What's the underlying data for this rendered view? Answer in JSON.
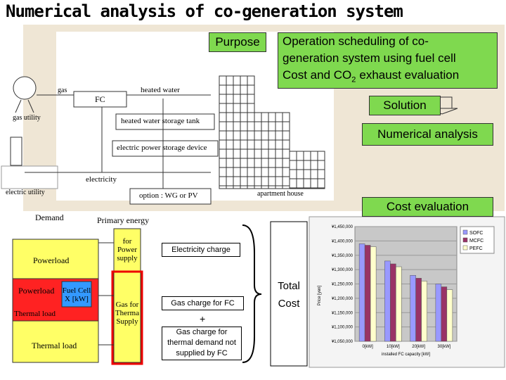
{
  "title": "Numerical analysis of co-generation system",
  "purpose": {
    "label": "Purpose",
    "lines": [
      "Operation scheduling of co-",
      "generation system using fuel cell"
    ],
    "co2_line": {
      "before": "Cost and CO",
      "sub": "2",
      "after": "exhaust evaluation"
    }
  },
  "solution": "Solution",
  "numerical_analysis": "Numerical analysis",
  "cost_evaluation": "Cost evaluation",
  "system_diagram": {
    "gas": "gas",
    "heated_water": "heated water",
    "fc": "FC",
    "gas_utility": "gas utility",
    "storage_tank": "heated water storage tank",
    "storage_device": "electric power storage device",
    "electricity": "electricity",
    "electric_utility": "electric utility",
    "option": "option : WG or PV",
    "apartment_house": "apartment house"
  },
  "cost_model": {
    "demand": "Demand",
    "primary_energy": "Primary energy",
    "powerload_top": "Powerload",
    "powerload_mid": "Powerload",
    "thermal_load_mid": "Thermal load",
    "fuel_cell": "Fuel Cell X [kW]",
    "thermal_load_bottom": "Thermal load",
    "for_power": "for Power supply",
    "gas_for_thermal": "Gas for Therma Supply",
    "electricity_charge": "Electricity charge",
    "gas_charge_fc": "Gas charge for FC",
    "plus": "+",
    "gas_charge_thermal": "Gas charge for thermal demand not supplied by FC",
    "total_cost": "Total Cost"
  },
  "cost_chart": {
    "type": "bar",
    "ylabel": "Price [yen]",
    "xlabel": "installed FC capacity [kW]",
    "categories": [
      "0[kW]",
      "10[kW]",
      "20[kW]",
      "30[kW]"
    ],
    "series": [
      {
        "name": "SOFC",
        "color": "#9999ff",
        "values": [
          1390000,
          1330000,
          1280000,
          1250000
        ]
      },
      {
        "name": "MCFC",
        "color": "#993366",
        "values": [
          1385000,
          1320000,
          1270000,
          1240000
        ]
      },
      {
        "name": "PEFC",
        "color": "#ffffcc",
        "values": [
          1380000,
          1310000,
          1260000,
          1230000
        ]
      }
    ],
    "ylim": [
      1050000,
      1450000
    ],
    "yticks": [
      {
        "value": 1450000,
        "label": "¥1,450,000"
      },
      {
        "value": 1400000,
        "label": "¥1,400,000"
      },
      {
        "value": 1350000,
        "label": "¥1,350,000"
      },
      {
        "value": 1300000,
        "label": "¥1,300,000"
      },
      {
        "value": 1250000,
        "label": "¥1,250,000"
      },
      {
        "value": 1200000,
        "label": "¥1,200,000"
      },
      {
        "value": 1150000,
        "label": "¥1,150,000"
      },
      {
        "value": 1100000,
        "label": "¥1,100,000"
      },
      {
        "value": 1050000,
        "label": "¥1,050,000"
      }
    ]
  }
}
